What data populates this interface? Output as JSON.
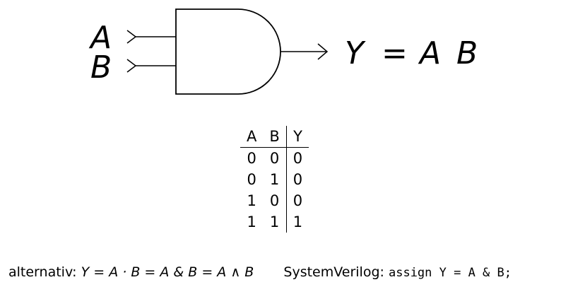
{
  "gate": {
    "input_a": "A",
    "input_b": "B",
    "output": "Y",
    "equation": "Y = A B"
  },
  "truth_table": {
    "headers": [
      "A",
      "B",
      "Y"
    ],
    "rows": [
      [
        "0",
        "0",
        "0"
      ],
      [
        "0",
        "1",
        "0"
      ],
      [
        "1",
        "0",
        "0"
      ],
      [
        "1",
        "1",
        "1"
      ]
    ]
  },
  "alternatives": {
    "prefix": "alternativ:",
    "expression": "Y = A · B = A & B = A ∧ B",
    "sv_label": "SystemVerilog:",
    "sv_code": "assign Y = A & B;"
  }
}
